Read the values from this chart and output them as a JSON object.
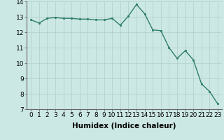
{
  "x": [
    0,
    1,
    2,
    3,
    4,
    5,
    6,
    7,
    8,
    9,
    10,
    11,
    12,
    13,
    14,
    15,
    16,
    17,
    18,
    19,
    20,
    21,
    22,
    23
  ],
  "y": [
    12.8,
    12.6,
    12.9,
    12.95,
    12.9,
    12.9,
    12.85,
    12.85,
    12.8,
    12.8,
    12.9,
    12.45,
    13.05,
    13.8,
    13.2,
    12.15,
    12.1,
    11.0,
    10.3,
    10.8,
    10.2,
    8.65,
    8.15,
    7.35
  ],
  "line_color": "#2e7d6e",
  "marker_color": "#2e7d6e",
  "bg_color": "#cce8e4",
  "grid_color": "#b0ceca",
  "xlabel": "Humidex (Indice chaleur)",
  "ylim": [
    7,
    14
  ],
  "xlim_min": -0.5,
  "xlim_max": 23.5,
  "yticks": [
    7,
    8,
    9,
    10,
    11,
    12,
    13,
    14
  ],
  "xticks": [
    0,
    1,
    2,
    3,
    4,
    5,
    6,
    7,
    8,
    9,
    10,
    11,
    12,
    13,
    14,
    15,
    16,
    17,
    18,
    19,
    20,
    21,
    22,
    23
  ],
  "xlabel_fontsize": 7.5,
  "tick_fontsize": 6.5,
  "marker_size": 2.5,
  "line_width": 1.0
}
